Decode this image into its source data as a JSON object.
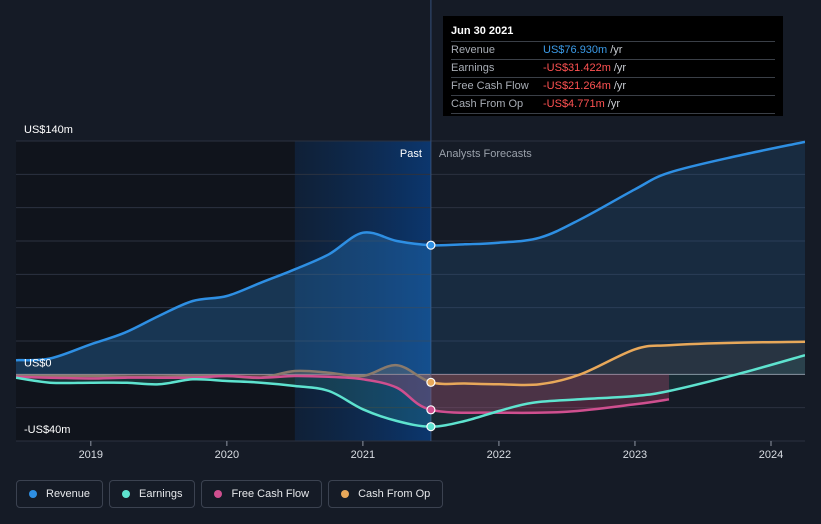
{
  "tooltip": {
    "date": "Jun 30 2021",
    "rows": [
      {
        "name": "Revenue",
        "value": "US$76.930m",
        "unit": "/yr",
        "color": "#3b9be8"
      },
      {
        "name": "Earnings",
        "value": "-US$31.422m",
        "unit": "/yr",
        "color": "#ff5252"
      },
      {
        "name": "Free Cash Flow",
        "value": "-US$21.264m",
        "unit": "/yr",
        "color": "#ff5252"
      },
      {
        "name": "Cash From Op",
        "value": "-US$4.771m",
        "unit": "/yr",
        "color": "#ff5252"
      }
    ]
  },
  "labels": {
    "past": "Past",
    "forecast": "Analysts Forecasts"
  },
  "legend": [
    {
      "name": "Revenue",
      "color": "#2e8fe3"
    },
    {
      "name": "Earnings",
      "color": "#5ee3cf"
    },
    {
      "name": "Free Cash Flow",
      "color": "#cf4f8f"
    },
    {
      "name": "Cash From Op",
      "color": "#e8a85a"
    }
  ],
  "chart_data": {
    "type": "line",
    "title": "",
    "xlabel": "",
    "ylabel": "",
    "x_range": [
      2018.45,
      2024.25
    ],
    "ylim": [
      -40,
      140
    ],
    "y_ticks": [
      {
        "value": 140,
        "label": "US$140m"
      },
      {
        "value": 0,
        "label": "US$0"
      },
      {
        "value": -40,
        "label": "-US$40m"
      }
    ],
    "x_ticks": [
      {
        "value": 2019,
        "label": "2019"
      },
      {
        "value": 2020,
        "label": "2020"
      },
      {
        "value": 2021,
        "label": "2021"
      },
      {
        "value": 2022,
        "label": "2022"
      },
      {
        "value": 2023,
        "label": "2023"
      },
      {
        "value": 2024,
        "label": "2024"
      }
    ],
    "highlight_start": 2020.5,
    "split_x": 2021.5,
    "grid": true,
    "legend_position": "bottom-left",
    "series": [
      {
        "name": "Revenue",
        "color": "#2e8fe3",
        "points": [
          [
            2018.45,
            8.5
          ],
          [
            2018.7,
            9.5
          ],
          [
            2019.0,
            18
          ],
          [
            2019.25,
            25
          ],
          [
            2019.5,
            35
          ],
          [
            2019.75,
            44
          ],
          [
            2020.0,
            47
          ],
          [
            2020.25,
            55
          ],
          [
            2020.5,
            63
          ],
          [
            2020.75,
            72
          ],
          [
            2021.0,
            85
          ],
          [
            2021.25,
            80
          ],
          [
            2021.5,
            77.5
          ],
          [
            2021.75,
            78
          ],
          [
            2022.0,
            79
          ],
          [
            2022.3,
            82
          ],
          [
            2022.6,
            93
          ],
          [
            2023.0,
            111
          ],
          [
            2023.25,
            121
          ],
          [
            2023.75,
            131
          ],
          [
            2024.25,
            139.5
          ]
        ]
      },
      {
        "name": "Earnings",
        "color": "#5ee3cf",
        "points": [
          [
            2018.45,
            -2
          ],
          [
            2018.7,
            -5
          ],
          [
            2019.0,
            -5
          ],
          [
            2019.25,
            -5
          ],
          [
            2019.5,
            -6
          ],
          [
            2019.75,
            -3
          ],
          [
            2020.0,
            -4
          ],
          [
            2020.25,
            -5
          ],
          [
            2020.5,
            -7
          ],
          [
            2020.75,
            -10
          ],
          [
            2021.0,
            -21
          ],
          [
            2021.25,
            -28
          ],
          [
            2021.5,
            -31.4
          ],
          [
            2021.75,
            -28
          ],
          [
            2022.0,
            -22
          ],
          [
            2022.25,
            -17
          ],
          [
            2022.6,
            -15
          ],
          [
            2023.0,
            -13
          ],
          [
            2023.25,
            -10
          ],
          [
            2023.75,
            0
          ],
          [
            2024.25,
            11.5
          ]
        ]
      },
      {
        "name": "Free Cash Flow",
        "color": "#cf4f8f",
        "points": [
          [
            2018.45,
            -1.5
          ],
          [
            2018.7,
            -2
          ],
          [
            2019.0,
            -2.5
          ],
          [
            2019.25,
            -2
          ],
          [
            2019.5,
            -2
          ],
          [
            2019.75,
            -2
          ],
          [
            2020.0,
            -1
          ],
          [
            2020.25,
            -2
          ],
          [
            2020.5,
            -1
          ],
          [
            2020.75,
            -1.5
          ],
          [
            2021.0,
            -3
          ],
          [
            2021.25,
            -8
          ],
          [
            2021.5,
            -21.3
          ],
          [
            2022.0,
            -23
          ],
          [
            2022.5,
            -22.5
          ],
          [
            2023.0,
            -18
          ],
          [
            2023.25,
            -15
          ]
        ]
      },
      {
        "name": "Cash From Op",
        "color": "#e8a85a",
        "points": [
          [
            2018.45,
            -1
          ],
          [
            2018.7,
            -1
          ],
          [
            2019.0,
            -1
          ],
          [
            2019.25,
            -1.5
          ],
          [
            2019.5,
            -1.5
          ],
          [
            2019.75,
            -1
          ],
          [
            2020.0,
            -1
          ],
          [
            2020.25,
            -2
          ],
          [
            2020.5,
            2
          ],
          [
            2020.75,
            1
          ],
          [
            2021.0,
            -1
          ],
          [
            2021.25,
            5.5
          ],
          [
            2021.5,
            -4.8
          ],
          [
            2021.75,
            -5.5
          ],
          [
            2022.0,
            -6
          ],
          [
            2022.3,
            -6
          ],
          [
            2022.6,
            0
          ],
          [
            2023.0,
            15
          ],
          [
            2023.25,
            17.5
          ],
          [
            2023.75,
            19
          ],
          [
            2024.25,
            19.5
          ]
        ]
      }
    ]
  }
}
